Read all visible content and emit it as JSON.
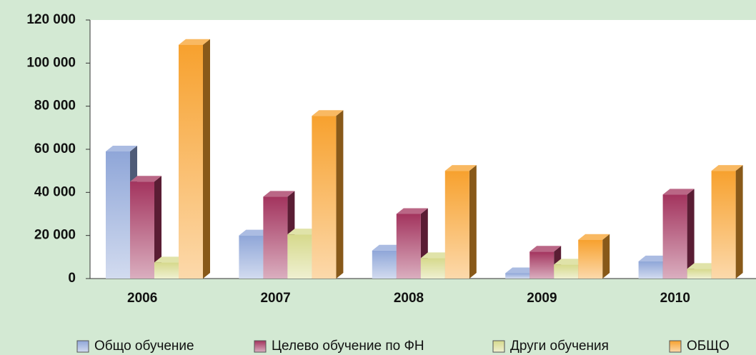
{
  "chart_data": {
    "type": "bar3d",
    "categories": [
      "2006",
      "2007",
      "2008",
      "2009",
      "2010"
    ],
    "series": [
      {
        "name": "Общо обучение",
        "color": "#8fa6d8",
        "values": [
          59000,
          20000,
          13000,
          2500,
          8000
        ]
      },
      {
        "name": "Целево обучение по ФН",
        "color": "#a3345e",
        "values": [
          45000,
          38000,
          30000,
          12500,
          39000
        ]
      },
      {
        "name": "Други обучения",
        "color": "#d6d98c",
        "values": [
          7500,
          20500,
          9500,
          6500,
          4500
        ]
      },
      {
        "name": "ОБЩО",
        "color": "#f7a12e",
        "values": [
          108500,
          75500,
          50000,
          18000,
          50000
        ]
      }
    ],
    "ylim": [
      0,
      120000
    ],
    "yticks": [
      {
        "value": 0,
        "label": "0"
      },
      {
        "value": 20000,
        "label": "20 000"
      },
      {
        "value": 40000,
        "label": "40 000"
      },
      {
        "value": 60000,
        "label": "60 000"
      },
      {
        "value": 80000,
        "label": "80 000"
      },
      {
        "value": 100000,
        "label": "100 000"
      },
      {
        "value": 120000,
        "label": "120 000"
      }
    ],
    "legend": "bottom"
  }
}
